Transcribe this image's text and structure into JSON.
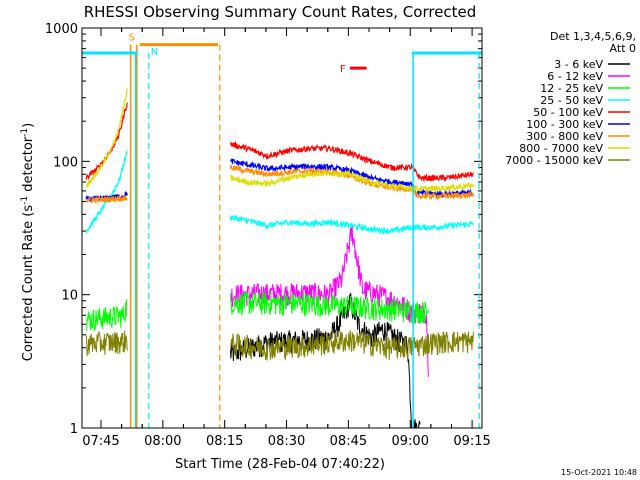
{
  "chart_data": {
    "type": "line",
    "title": "RHESSI Observing Summary Count Rates, Corrected",
    "xlabel": "Start Time (28-Feb-04 07:40:22)",
    "ylabel_main": "Corrected Count Rate (s",
    "ylabel_sup1": "-1",
    "ylabel_mid": " detector",
    "ylabel_sup2": "-1",
    "ylabel_end": ")",
    "yscale": "log",
    "ylim": [
      1,
      1000
    ],
    "xlim_minutes": [
      0,
      97
    ],
    "y_ticks": [
      {
        "value": 1,
        "label": "1"
      },
      {
        "value": 10,
        "label": "10"
      },
      {
        "value": 100,
        "label": "100"
      },
      {
        "value": 1000,
        "label": "1000"
      }
    ],
    "x_ticks": [
      {
        "minute": 4.6,
        "label": "07:45"
      },
      {
        "minute": 19.6,
        "label": "08:00"
      },
      {
        "minute": 34.6,
        "label": "08:15"
      },
      {
        "minute": 49.6,
        "label": "08:30"
      },
      {
        "minute": 64.6,
        "label": "08:45"
      },
      {
        "minute": 79.6,
        "label": "09:00"
      },
      {
        "minute": 94.6,
        "label": "09:15"
      }
    ],
    "legend_header": [
      "Det 1,3,4,5,6,9,",
      "Att 0"
    ],
    "legend_position": "right",
    "series": [
      {
        "name": "3 - 6 keV",
        "color": "#000000",
        "segments": [
          [
            [
              36,
              3.6
            ],
            [
              45,
              4.4
            ],
            [
              55,
              4.6
            ],
            [
              60,
              4.8
            ],
            [
              63,
              6.5
            ],
            [
              65,
              9.0
            ],
            [
              67,
              6.0
            ],
            [
              70,
              4.8
            ],
            [
              73,
              5.5
            ],
            [
              77,
              4.5
            ],
            [
              79,
              4.2
            ],
            [
              80,
              1.0
            ],
            [
              82,
              1.0
            ]
          ]
        ]
      },
      {
        "name": "6 - 12 keV",
        "color": "#ff00ff",
        "segments": [
          [
            [
              36,
              10.0
            ],
            [
              45,
              10.2
            ],
            [
              55,
              10.3
            ],
            [
              60,
              10.0
            ],
            [
              63,
              13.0
            ],
            [
              64.5,
              22.0
            ],
            [
              65.5,
              30.0
            ],
            [
              66.5,
              20.0
            ],
            [
              68,
              11.0
            ],
            [
              72,
              10.0
            ],
            [
              76,
              9.0
            ],
            [
              80,
              7.5
            ],
            [
              83.5,
              7.5
            ],
            [
              84,
              3.0
            ]
          ]
        ]
      },
      {
        "name": "12 - 25 keV",
        "color": "#00ff00",
        "segments": [
          [
            [
              1,
              6.5
            ],
            [
              6,
              6.8
            ],
            [
              10,
              7.0
            ],
            [
              11,
              8.5
            ]
          ],
          [
            [
              36,
              8.8
            ],
            [
              45,
              8.7
            ],
            [
              55,
              8.6
            ],
            [
              62,
              8.3
            ],
            [
              66,
              8.2
            ],
            [
              70,
              8.0
            ],
            [
              76,
              7.8
            ],
            [
              80,
              7.6
            ],
            [
              84,
              7.5
            ]
          ]
        ]
      },
      {
        "name": "25 - 50 keV",
        "color": "#00ffff",
        "segments": [
          [
            [
              1,
              30
            ],
            [
              4,
              40
            ],
            [
              7,
              55
            ],
            [
              9,
              72
            ],
            [
              11,
              120
            ]
          ],
          [
            [
              36,
              38
            ],
            [
              40,
              36
            ],
            [
              45,
              33
            ],
            [
              50,
              35
            ],
            [
              55,
              34
            ],
            [
              60,
              35
            ],
            [
              65,
              33
            ],
            [
              70,
              31
            ],
            [
              75,
              30
            ],
            [
              80,
              32
            ],
            [
              85,
              32
            ],
            [
              90,
              33
            ],
            [
              95,
              34
            ]
          ]
        ]
      },
      {
        "name": "50 - 100 keV",
        "color": "#ff0000",
        "segments": [
          [
            [
              1,
              75
            ],
            [
              4,
              90
            ],
            [
              7,
              120
            ],
            [
              9,
              160
            ],
            [
              11,
              280
            ]
          ],
          [
            [
              36,
              135
            ],
            [
              40,
              125
            ],
            [
              45,
              110
            ],
            [
              50,
              120
            ],
            [
              55,
              125
            ],
            [
              60,
              125
            ],
            [
              65,
              115
            ],
            [
              70,
              100
            ],
            [
              75,
              90
            ],
            [
              80,
              90
            ],
            [
              82,
              75
            ],
            [
              88,
              75
            ],
            [
              95,
              80
            ]
          ]
        ]
      },
      {
        "name": "100 - 300 keV",
        "color": "#0000ff",
        "segments": [
          [
            [
              1,
              52
            ],
            [
              6,
              53
            ],
            [
              10,
              55
            ],
            [
              11,
              58
            ]
          ],
          [
            [
              36,
              100
            ],
            [
              40,
              95
            ],
            [
              45,
              88
            ],
            [
              50,
              90
            ],
            [
              55,
              92
            ],
            [
              60,
              90
            ],
            [
              65,
              85
            ],
            [
              70,
              75
            ],
            [
              75,
              70
            ],
            [
              80,
              68
            ],
            [
              81,
              58
            ],
            [
              88,
              57
            ],
            [
              95,
              58
            ]
          ]
        ]
      },
      {
        "name": "300 - 800 keV",
        "color": "#ff8c00",
        "segments": [
          [
            [
              1,
              51
            ],
            [
              6,
              52
            ],
            [
              10,
              53
            ],
            [
              11,
              53
            ]
          ],
          [
            [
              36,
              90
            ],
            [
              40,
              85
            ],
            [
              45,
              80
            ],
            [
              50,
              83
            ],
            [
              55,
              85
            ],
            [
              60,
              83
            ],
            [
              65,
              78
            ],
            [
              70,
              68
            ],
            [
              75,
              63
            ],
            [
              80,
              62
            ],
            [
              81,
              55
            ],
            [
              88,
              55
            ],
            [
              95,
              56
            ]
          ]
        ]
      },
      {
        "name": "800 - 7000 keV",
        "color": "#dddd00",
        "segments": [
          [
            [
              1,
              65
            ],
            [
              4,
              85
            ],
            [
              7,
              120
            ],
            [
              9,
              180
            ],
            [
              11,
              340
            ]
          ],
          [
            [
              36,
              75
            ],
            [
              40,
              70
            ],
            [
              45,
              68
            ],
            [
              50,
              75
            ],
            [
              55,
              80
            ],
            [
              60,
              82
            ],
            [
              65,
              80
            ],
            [
              70,
              70
            ],
            [
              75,
              65
            ],
            [
              80,
              63
            ],
            [
              82,
              62
            ],
            [
              88,
              63
            ],
            [
              95,
              66
            ]
          ]
        ]
      },
      {
        "name": "7000 - 15000 keV",
        "color": "#808000",
        "segments": [
          [
            [
              1,
              4.3
            ],
            [
              6,
              4.4
            ],
            [
              10,
              4.5
            ],
            [
              11,
              4.6
            ]
          ],
          [
            [
              36,
              4.3
            ],
            [
              45,
              4.0
            ],
            [
              55,
              4.2
            ],
            [
              60,
              4.4
            ],
            [
              65,
              4.6
            ],
            [
              70,
              4.3
            ],
            [
              75,
              4.0
            ],
            [
              80,
              4.1
            ],
            [
              85,
              4.4
            ],
            [
              90,
              4.5
            ],
            [
              95,
              4.5
            ]
          ]
        ]
      }
    ],
    "annotations": {
      "saa_label": "S",
      "night_label": "N",
      "flare_label": "F",
      "cyan_level": 650,
      "orange_level": 750,
      "flare_bar": {
        "x_start": 65,
        "x_end": 69,
        "y": 500
      },
      "orange_bar": {
        "x_start": 14,
        "x_end": 33
      },
      "cyan_bar_left": {
        "x_start": 0,
        "x_end": 13.5
      },
      "cyan_bar_right": {
        "x_start": 80,
        "x_end": 97
      },
      "solid_orange_x": [
        11.8,
        13.3
      ],
      "solid_cyan_x": [
        13.0,
        80.3
      ],
      "dashed_cyan_x": [
        16.2,
        96.3
      ],
      "dashed_orange_x": [
        33.4
      ]
    },
    "footer_date": "15-Oct-2021 10:48"
  }
}
